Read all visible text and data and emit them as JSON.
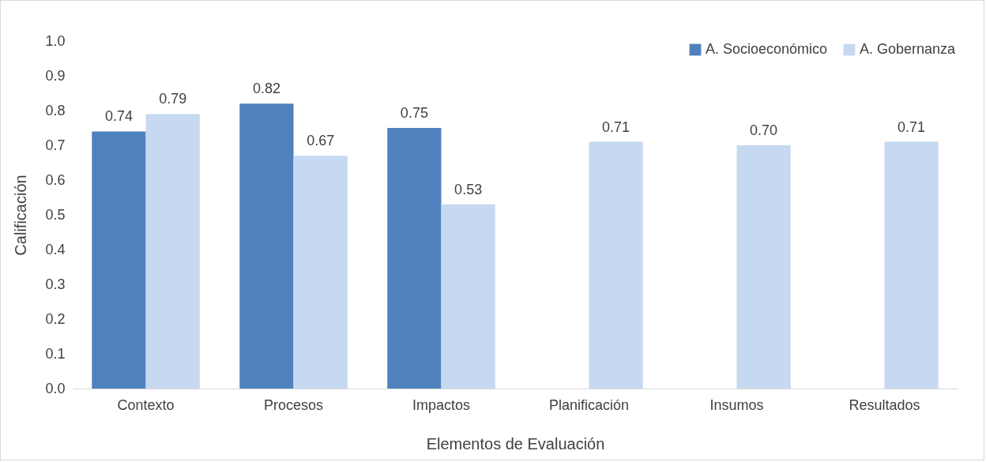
{
  "chart_data": {
    "type": "bar",
    "xlabel": "Elementos de Evaluación",
    "ylabel": "Calificación",
    "categories": [
      "Contexto",
      "Procesos",
      "Impactos",
      "Planificación",
      "Insumos",
      "Resultados"
    ],
    "series": [
      {
        "name": "A. Socioeconómico",
        "color": "#4f81bd",
        "values": [
          0.74,
          0.82,
          0.75,
          null,
          null,
          null
        ],
        "value_labels": [
          "0.74",
          "0.82",
          "0.75",
          null,
          null,
          null
        ]
      },
      {
        "name": "A. Gobernanza",
        "color": "#c6d9f0",
        "values": [
          0.79,
          0.67,
          0.53,
          0.71,
          0.7,
          0.71
        ],
        "value_labels": [
          "0.79",
          "0.67",
          "0.53",
          "0.71",
          "0.70",
          "0.71"
        ]
      }
    ],
    "ylim": [
      0,
      1
    ],
    "yticks": [
      {
        "value": 0,
        "label": "0.0"
      },
      0.1,
      0.2,
      0.3,
      0.4,
      0.5,
      0.6,
      0.7,
      0.8,
      0.9,
      {
        "value": 1,
        "label": "1.0"
      }
    ],
    "grid": false,
    "legend": "top right"
  }
}
